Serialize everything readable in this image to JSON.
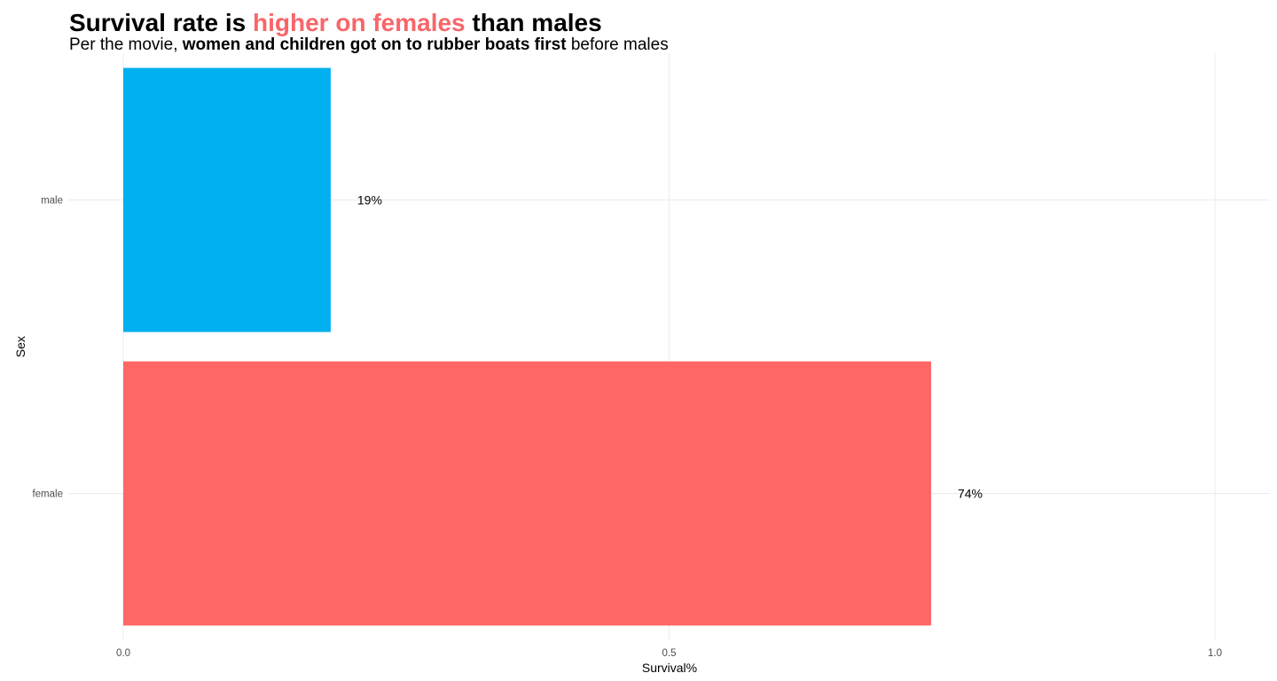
{
  "chart_data": {
    "type": "bar",
    "orientation": "horizontal",
    "title_parts": {
      "prefix": "Survival rate is ",
      "highlight": "higher on females",
      "suffix": " than males",
      "highlight_color": "#F8666A"
    },
    "subtitle_parts": {
      "prefix": "Per the movie, ",
      "bold": "women and children got on to rubber boats first",
      "suffix": " before males"
    },
    "xlabel": "Survival%",
    "ylabel": "Sex",
    "categories": [
      "male",
      "female"
    ],
    "values": [
      0.19,
      0.74
    ],
    "data_labels": [
      "19%",
      "74%"
    ],
    "colors": [
      "#00B0F0",
      "#FF6666"
    ],
    "xlim": [
      0,
      1.05
    ],
    "x_ticks": [
      0,
      0.5,
      1.0
    ],
    "x_tick_labels": [
      "0.0",
      "0.5",
      "1.0"
    ],
    "grid": true,
    "legend": "none"
  }
}
